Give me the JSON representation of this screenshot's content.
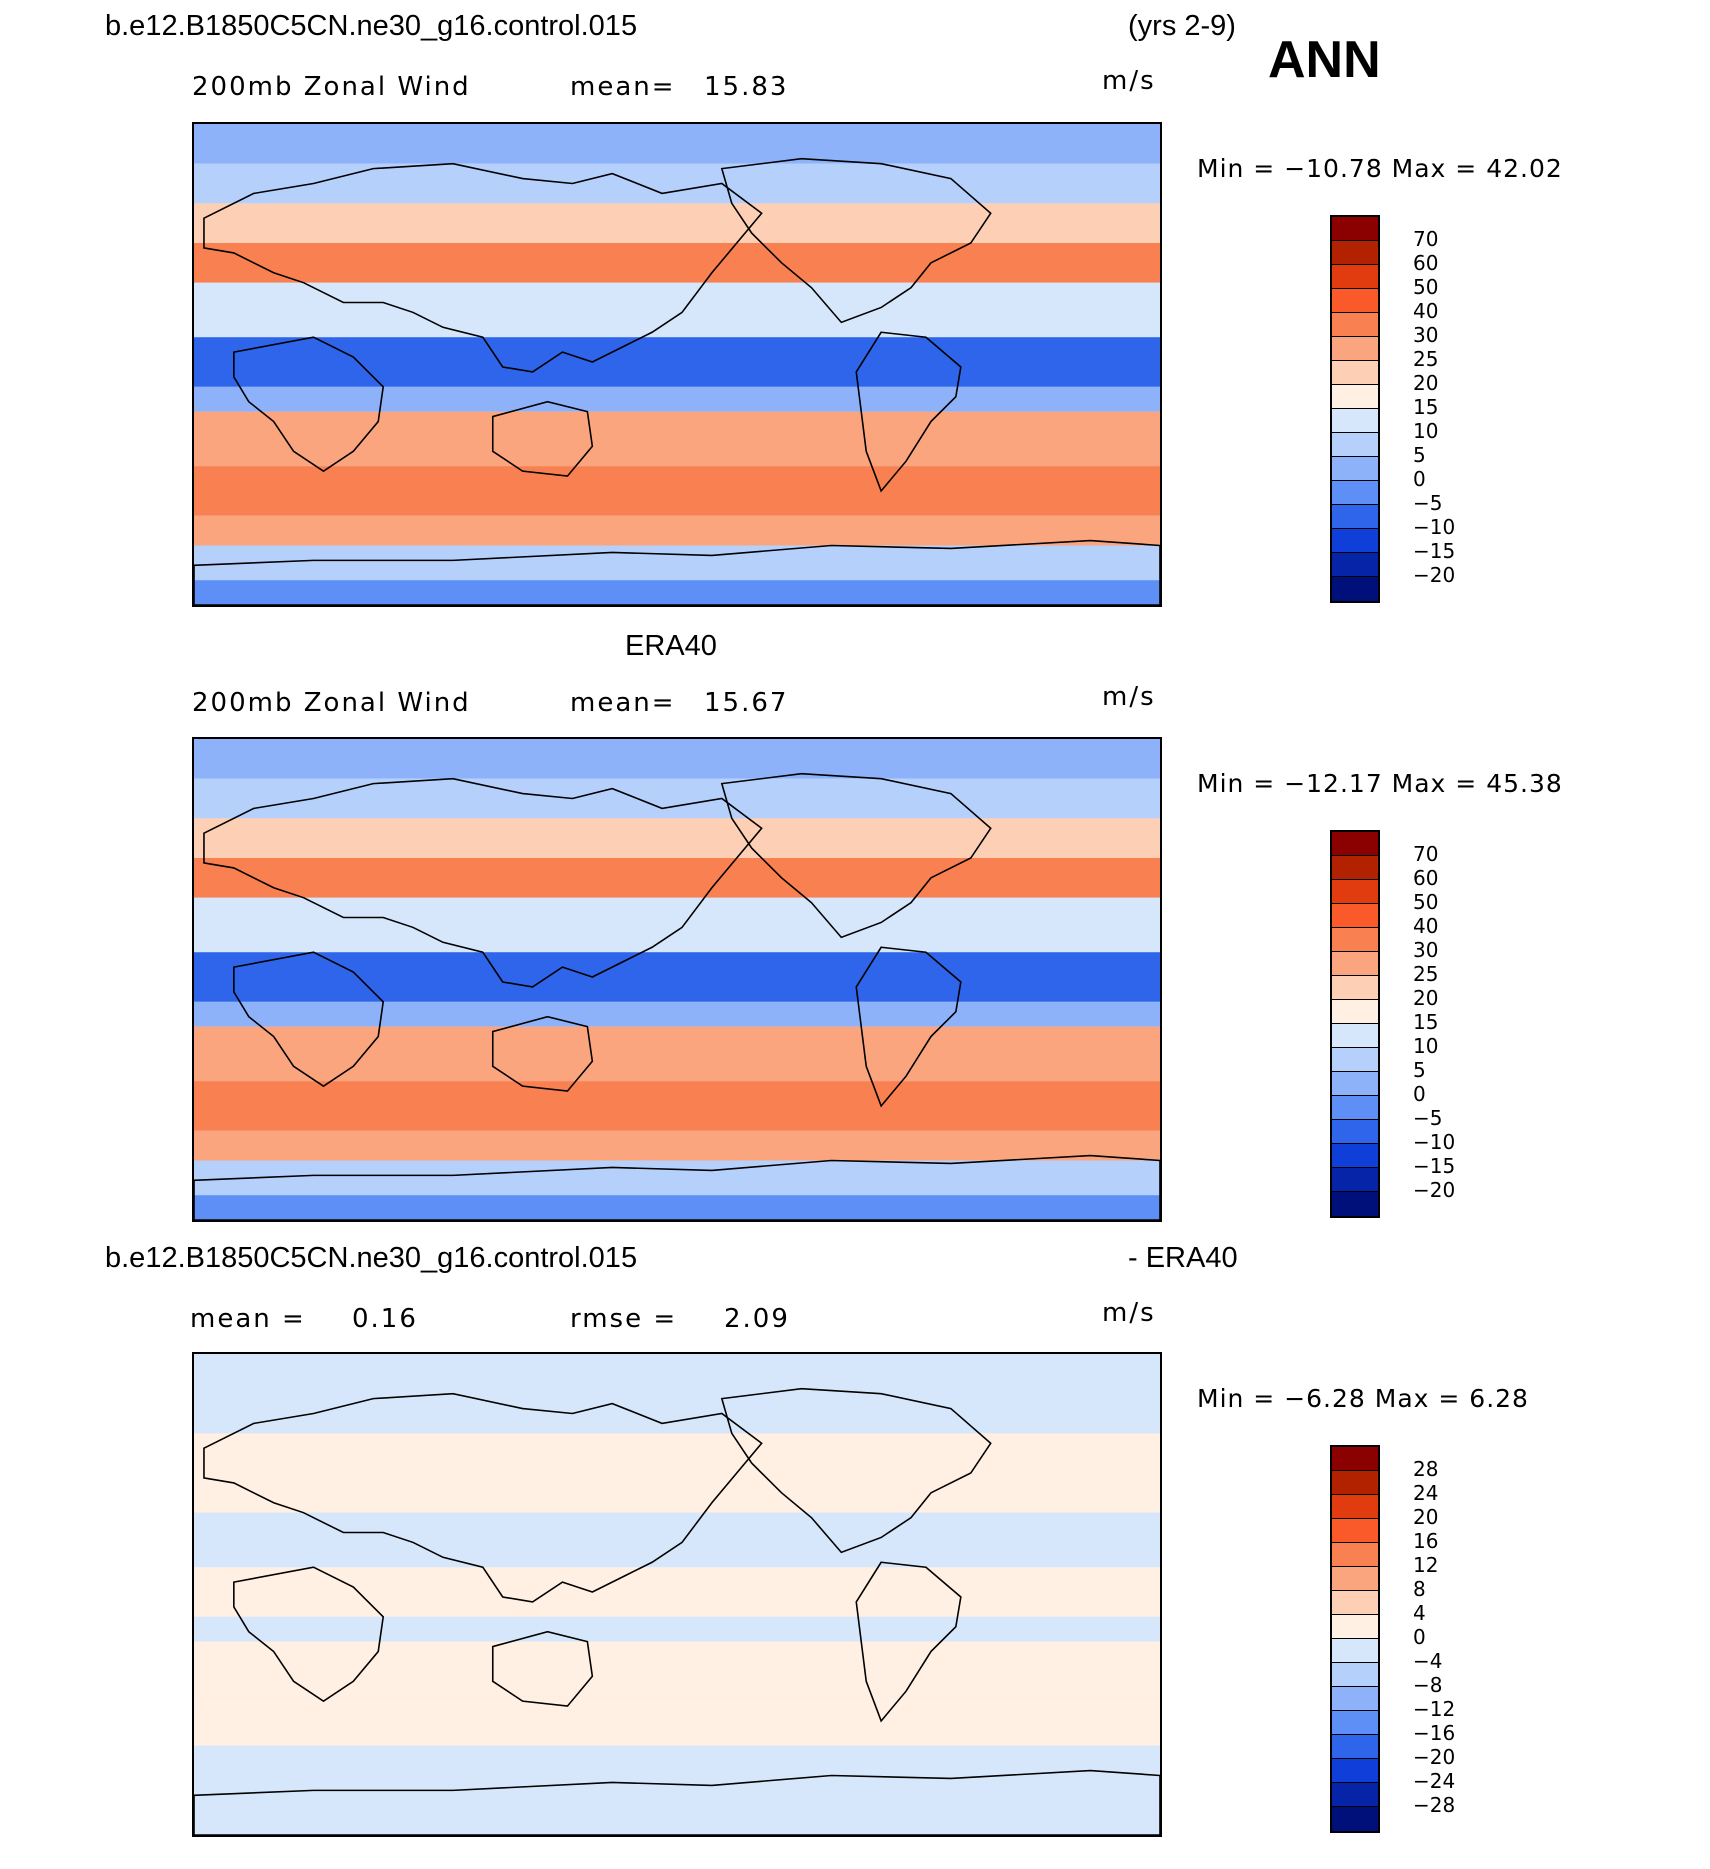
{
  "header": {
    "case_name": "b.e12.B1850C5CN.ne30_g16.control.015",
    "years": "(yrs 2-9)",
    "season": "ANN"
  },
  "panels": [
    {
      "id": "model",
      "heading": "",
      "left_label": "200mb Zonal Wind",
      "mid_label": "mean=",
      "mid_value": "15.83",
      "units": "m/s",
      "minmax": "Min = −10.78 Max =   42.02",
      "colorbar": {
        "colors": [
          "#8b0000",
          "#b22200",
          "#e03c10",
          "#fa5a2a",
          "#f98050",
          "#fba57e",
          "#fdd0b6",
          "#fff0e3",
          "#d6e7fc",
          "#b5d0fb",
          "#8db2fa",
          "#5e8ff7",
          "#2e65ea",
          "#0f3fd8",
          "#0524a8",
          "#00107a"
        ],
        "labels": [
          "70",
          "60",
          "50",
          "40",
          "30",
          "25",
          "20",
          "15",
          "10",
          "5",
          "0",
          "−5",
          "−10",
          "−15",
          "−20"
        ]
      },
      "map_fill": [
        "#8db2fa",
        "#b5d0fb",
        "#fdd0b6",
        "#f98050",
        "#d6e7fc",
        "#2e65ea",
        "#8db2fa",
        "#fba57e",
        "#f98050",
        "#fba57e",
        "#b5d0fb",
        "#5e8ff7"
      ]
    },
    {
      "id": "obs",
      "heading": "ERA40",
      "left_label": "200mb Zonal Wind",
      "mid_label": "mean=",
      "mid_value": "15.67",
      "units": "m/s",
      "minmax": "Min = −12.17 Max =   45.38",
      "colorbar": {
        "colors": [
          "#8b0000",
          "#b22200",
          "#e03c10",
          "#fa5a2a",
          "#f98050",
          "#fba57e",
          "#fdd0b6",
          "#fff0e3",
          "#d6e7fc",
          "#b5d0fb",
          "#8db2fa",
          "#5e8ff7",
          "#2e65ea",
          "#0f3fd8",
          "#0524a8",
          "#00107a"
        ],
        "labels": [
          "70",
          "60",
          "50",
          "40",
          "30",
          "25",
          "20",
          "15",
          "10",
          "5",
          "0",
          "−5",
          "−10",
          "−15",
          "−20"
        ]
      },
      "map_fill": [
        "#8db2fa",
        "#b5d0fb",
        "#fdd0b6",
        "#f98050",
        "#d6e7fc",
        "#2e65ea",
        "#8db2fa",
        "#fba57e",
        "#f98050",
        "#fba57e",
        "#b5d0fb",
        "#5e8ff7"
      ]
    },
    {
      "id": "diff",
      "heading_left": "b.e12.B1850C5CN.ne30_g16.control.015",
      "heading_right": "- ERA40",
      "left_label": "mean =",
      "left_value": "0.16",
      "mid_label": "rmse =",
      "mid_value": "2.09",
      "units": "m/s",
      "minmax": "Min =   −6.28 Max =    6.28",
      "colorbar": {
        "colors": [
          "#8b0000",
          "#b22200",
          "#e03c10",
          "#fa5a2a",
          "#f98050",
          "#fba57e",
          "#fdd0b6",
          "#fff0e3",
          "#d6e7fc",
          "#b5d0fb",
          "#8db2fa",
          "#5e8ff7",
          "#2e65ea",
          "#0f3fd8",
          "#0524a8",
          "#00107a"
        ],
        "labels": [
          "28",
          "24",
          "20",
          "16",
          "12",
          "8",
          "4",
          "0",
          "−4",
          "−8",
          "−12",
          "−16",
          "−20",
          "−24",
          "−28"
        ]
      },
      "map_fill": [
        "#d6e7fc",
        "#d6e7fc",
        "#fff0e3",
        "#fff0e3",
        "#d6e7fc",
        "#fff0e3",
        "#d6e7fc",
        "#fff0e3",
        "#fff0e3",
        "#d6e7fc",
        "#d6e7fc",
        "#d6e7fc"
      ]
    }
  ]
}
